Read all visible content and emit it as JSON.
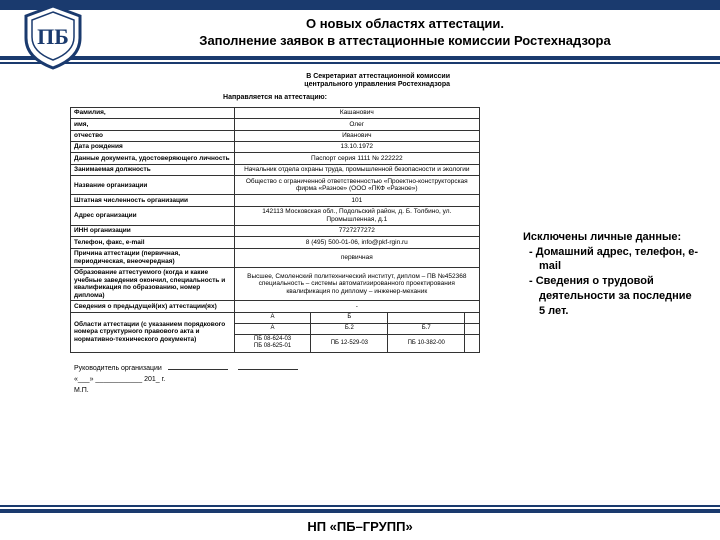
{
  "colors": {
    "navy": "#1a3a6e",
    "white": "#ffffff",
    "text": "#000000"
  },
  "header": {
    "title_line1": "О новых областях аттестации.",
    "title_line2": "Заполнение заявок в аттестационные комиссии Ростехнадзора"
  },
  "form": {
    "recipient_line1": "В Секретариат аттестационной комиссии",
    "recipient_line2": "центрального управления Ростехнадзора",
    "subheader": "Направляется на аттестацию:",
    "rows": [
      {
        "label": "Фамилия,",
        "value": "Кашанович"
      },
      {
        "label": "имя,",
        "value": "Олег"
      },
      {
        "label": "отчество",
        "value": "Иванович"
      },
      {
        "label": "Дата рождения",
        "value": "13.10.1972"
      },
      {
        "label": "Данные документа, удостоверяющего личность",
        "value": "Паспорт серия 1111 № 222222"
      },
      {
        "label": "Занимаемая должность",
        "value": "Начальник отдела охраны труда, промышленной безопасности и экологии"
      },
      {
        "label": "Название организации",
        "value": "Общество с ограниченной ответственностью «Проектно-конструкторская фирма «Разное» (ООО «ПКФ «Разное»)"
      },
      {
        "label": "Штатная численность организации",
        "value": "101"
      },
      {
        "label": "Адрес организации",
        "value": "142113 Московская обл., Подольский район, д. Б. Толбино, ул. Промышленная, д.1"
      },
      {
        "label": "ИНН организации",
        "value": "7727277272"
      },
      {
        "label": "Телефон, факс, e-mail",
        "value": "8 (495) 500-01-06, info@pkf-rgin.ru"
      },
      {
        "label": "Причина аттестации (первичная, периодическая, внеочередная)",
        "value": "первичная"
      },
      {
        "label": "Образование аттестуемого (когда и какие учебные заведения окончил, специальность и квалификация по образованию, номер диплома)",
        "value": "Высшее, Смоленский политехнический институт, диплом – ПВ №452368 специальность – системы автоматизированного проектирования квалификация по диплому – инженер-механик"
      },
      {
        "label": "Сведения о предыдущей(их) аттестации(ях)",
        "value": "-"
      }
    ],
    "areas_label": "Области аттестации (с указанием порядкового номера структурного правового акта и нормативно-технического документа)",
    "areas_cols": [
      "А",
      "Б",
      "",
      ""
    ],
    "areas_sub": [
      "А",
      "Б.2",
      "Б.7",
      ""
    ],
    "areas_codes": [
      "ПБ 08-624-03\nПБ 08-625-01",
      "ПБ 12-529-03",
      "ПБ 10-382-00",
      ""
    ],
    "sig_head": "Руководитель организации",
    "sig_date": "«___» ____________ 201_ г.",
    "sig_stamp": "М.П."
  },
  "sidebar": {
    "title": "Исключены личные данные:",
    "items": [
      "Домашний адрес, телефон, e-mail",
      "Сведения о трудовой деятельности за последние 5 лет."
    ]
  },
  "footer": {
    "label": "НП  «ПБ–ГРУПП»"
  }
}
